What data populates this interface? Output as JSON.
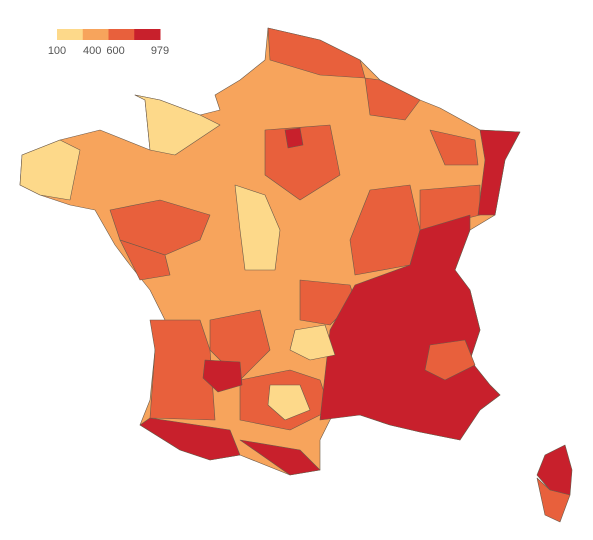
{
  "legend": {
    "colors": [
      "#fdd98a",
      "#f7a45c",
      "#e8603c",
      "#c8202c"
    ],
    "ticks": [
      100,
      400,
      600,
      979
    ]
  }
}
